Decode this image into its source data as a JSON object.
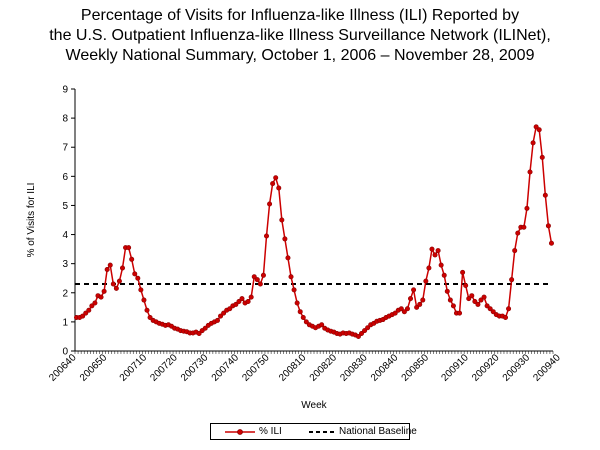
{
  "title_lines": [
    "Percentage of Visits for Influenza-like Illness (ILI) Reported by",
    "the U.S. Outpatient Influenza-like Illness Surveillance Network (ILINet),",
    "Weekly National Summary, October 1, 2006 – November 28, 2009"
  ],
  "chart_data": {
    "type": "line",
    "title": "Percentage of Visits for Influenza-like Illness (ILI) Reported by the U.S. Outpatient Influenza-like Illness Surveillance Network (ILINet), Weekly National Summary, October 1, 2006 – November 28, 2009",
    "xlabel": "Week",
    "ylabel": "% of Visits for ILI",
    "ylim": [
      0,
      9
    ],
    "yticks": [
      0,
      1,
      2,
      3,
      4,
      5,
      6,
      7,
      8,
      9
    ],
    "x_tick_labels": [
      "200640",
      "200650",
      "200710",
      "200720",
      "200730",
      "200740",
      "200750",
      "200810",
      "200820",
      "200830",
      "200840",
      "200850",
      "200910",
      "200920",
      "200930",
      "200940"
    ],
    "x_tick_indices": [
      0,
      10,
      23,
      33,
      43,
      53,
      63,
      75,
      85,
      95,
      105,
      115,
      128,
      138,
      148,
      158
    ],
    "grid": false,
    "legend_position": "bottom",
    "series": [
      {
        "name": "% ILI",
        "color": "#cc0000",
        "marker": "circle",
        "values": [
          1.15,
          1.15,
          1.2,
          1.3,
          1.4,
          1.55,
          1.65,
          1.9,
          1.85,
          2.05,
          2.8,
          2.95,
          2.3,
          2.15,
          2.4,
          2.85,
          3.55,
          3.55,
          3.15,
          2.65,
          2.5,
          2.1,
          1.75,
          1.4,
          1.15,
          1.05,
          1.0,
          0.95,
          0.92,
          0.88,
          0.9,
          0.85,
          0.78,
          0.75,
          0.7,
          0.68,
          0.66,
          0.62,
          0.62,
          0.65,
          0.6,
          0.7,
          0.78,
          0.88,
          0.95,
          1.0,
          1.05,
          1.2,
          1.3,
          1.4,
          1.45,
          1.55,
          1.6,
          1.7,
          1.8,
          1.65,
          1.7,
          1.85,
          2.55,
          2.45,
          2.3,
          2.6,
          3.95,
          5.05,
          5.75,
          5.95,
          5.6,
          4.5,
          3.85,
          3.2,
          2.55,
          2.1,
          1.65,
          1.35,
          1.15,
          1.0,
          0.9,
          0.85,
          0.8,
          0.85,
          0.9,
          0.78,
          0.72,
          0.68,
          0.65,
          0.6,
          0.58,
          0.62,
          0.6,
          0.62,
          0.58,
          0.55,
          0.5,
          0.6,
          0.7,
          0.8,
          0.9,
          0.95,
          1.02,
          1.05,
          1.08,
          1.15,
          1.2,
          1.25,
          1.3,
          1.4,
          1.45,
          1.35,
          1.45,
          1.8,
          2.1,
          1.5,
          1.6,
          1.75,
          2.4,
          2.85,
          3.5,
          3.3,
          3.45,
          2.95,
          2.6,
          2.05,
          1.75,
          1.55,
          1.3,
          1.3,
          2.7,
          2.25,
          1.8,
          1.9,
          1.7,
          1.6,
          1.75,
          1.85,
          1.55,
          1.45,
          1.35,
          1.25,
          1.2,
          1.2,
          1.15,
          1.45,
          2.45,
          3.45,
          4.05,
          4.25,
          4.25,
          4.9,
          6.15,
          7.15,
          7.7,
          7.6,
          6.65,
          5.35,
          4.3,
          3.7
        ]
      },
      {
        "name": "National Baseline",
        "color": "#000000",
        "style": "dashed",
        "value": 2.3
      }
    ]
  },
  "legend": {
    "ili_label": "% ILI",
    "baseline_label": "National Baseline"
  }
}
